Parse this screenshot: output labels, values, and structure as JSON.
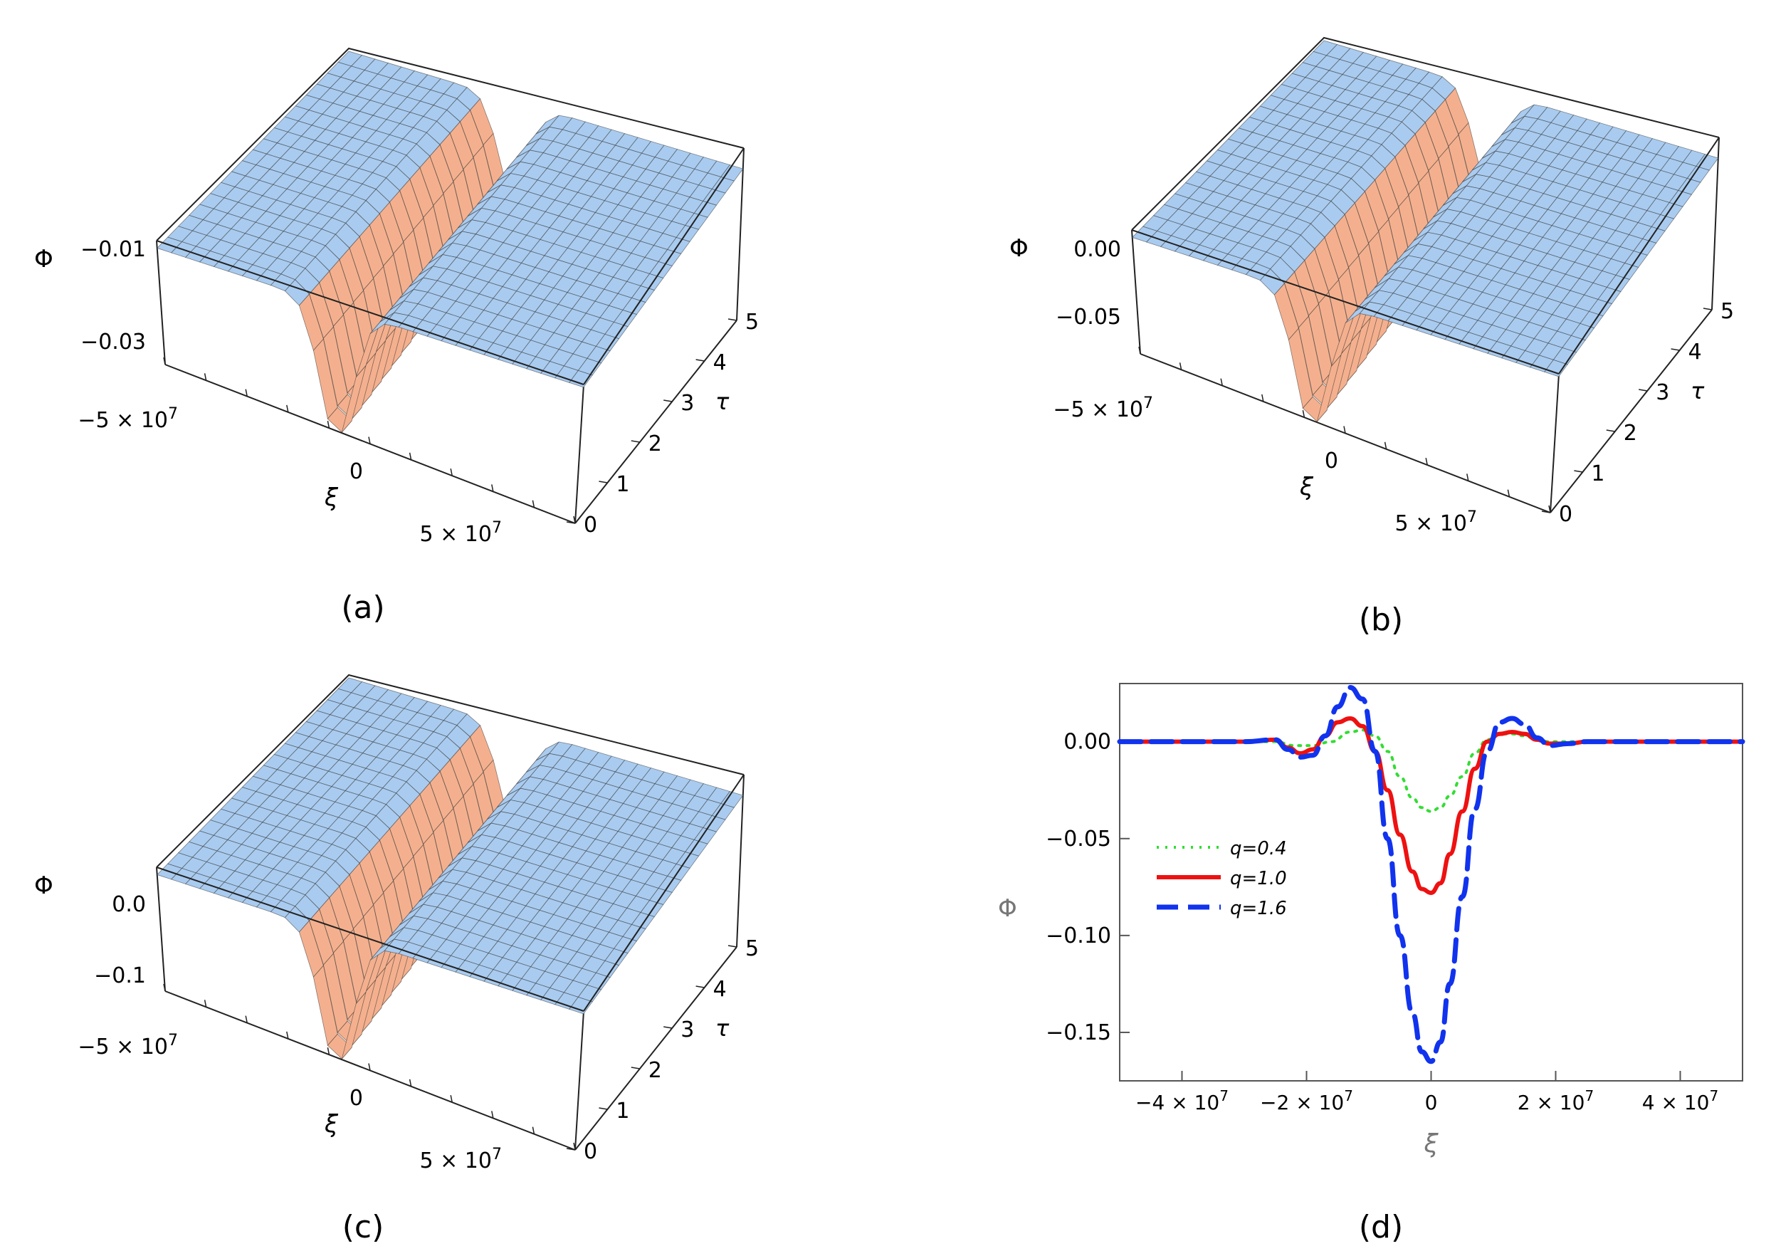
{
  "panel_labels": [
    "(a)",
    "(b)",
    "(c)",
    "(d)"
  ],
  "chart_data": [
    {
      "type": "surface",
      "panel": "(a)",
      "zlabel": "Φ",
      "xlabel": "ξ",
      "ylabel": "τ",
      "x_ticks": [
        "−5 × 10",
        "0",
        "5 × 10"
      ],
      "x_tick_exp": "7",
      "y_ticks": [
        "0",
        "1",
        "2",
        "3",
        "4",
        "5"
      ],
      "z_ticks": [
        "−0.01",
        "−0.03"
      ],
      "z_min": -0.037,
      "colors": {
        "surface": "#a9cbef",
        "trough": "#f4b08e",
        "mesh": "#2b2b2b"
      }
    },
    {
      "type": "surface",
      "panel": "(b)",
      "zlabel": "Φ",
      "xlabel": "ξ",
      "ylabel": "τ",
      "x_ticks": [
        "−5 × 10",
        "0",
        "5 × 10"
      ],
      "x_tick_exp": "7",
      "y_ticks": [
        "0",
        "1",
        "2",
        "3",
        "4",
        "5"
      ],
      "z_ticks": [
        "0.00",
        "−0.05"
      ],
      "z_min": -0.078,
      "colors": {
        "surface": "#a9cbef",
        "trough": "#f4b08e",
        "mesh": "#2b2b2b"
      }
    },
    {
      "type": "surface",
      "panel": "(c)",
      "zlabel": "Φ",
      "xlabel": "ξ",
      "ylabel": "τ",
      "x_ticks": [
        "−5 × 10",
        "0",
        "5 × 10"
      ],
      "x_tick_exp": "7",
      "y_ticks": [
        "0",
        "1",
        "2",
        "3",
        "4",
        "5"
      ],
      "z_ticks": [
        "0.0",
        "−0.1"
      ],
      "z_min": -0.165,
      "colors": {
        "surface": "#a9cbef",
        "trough": "#f4b08e",
        "mesh": "#2b2b2b"
      }
    },
    {
      "type": "line",
      "panel": "(d)",
      "xlabel": "ξ",
      "ylabel": "Φ",
      "xlim": [
        -50000000,
        50000000
      ],
      "ylim": [
        -0.175,
        0.03
      ],
      "x_ticks": [
        {
          "v": -40000000,
          "label": "−4 × 10",
          "exp": "7"
        },
        {
          "v": -20000000,
          "label": "−2 × 10",
          "exp": "7"
        },
        {
          "v": 0,
          "label": "0",
          "exp": ""
        },
        {
          "v": 20000000,
          "label": "2 × 10",
          "exp": "7"
        },
        {
          "v": 40000000,
          "label": "4 × 10",
          "exp": "7"
        }
      ],
      "y_ticks": [
        {
          "v": 0.0,
          "label": "0.00"
        },
        {
          "v": -0.05,
          "label": "−0.05"
        },
        {
          "v": -0.1,
          "label": "−0.10"
        },
        {
          "v": -0.15,
          "label": "−0.15"
        }
      ],
      "series": [
        {
          "name": "q=0.4",
          "color": "#33dd33",
          "style": "dotted",
          "x": [
            -50000000,
            -40000000,
            -30000000,
            -25000000,
            -22000000,
            -19000000,
            -16000000,
            -13000000,
            -11000000,
            -9000000,
            -7000000,
            -5000000,
            -3000000,
            -1500000,
            0,
            1500000,
            3000000,
            5000000,
            7000000,
            9000000,
            11000000,
            13000000,
            15000000,
            17000000,
            19000000,
            22000000,
            25000000,
            30000000,
            40000000,
            50000000
          ],
          "y": [
            0,
            0,
            0,
            0,
            -0.002,
            -0.002,
            0,
            0.005,
            0.006,
            0.003,
            -0.005,
            -0.018,
            -0.029,
            -0.034,
            -0.036,
            -0.034,
            -0.028,
            -0.018,
            -0.006,
            0.001,
            0.004,
            0.004,
            0.003,
            0.001,
            0,
            0,
            0,
            0,
            0,
            0
          ]
        },
        {
          "name": "q=1.0",
          "color": "#ee1111",
          "style": "solid",
          "x": [
            -50000000,
            -40000000,
            -30000000,
            -25000000,
            -23000000,
            -21000000,
            -19000000,
            -17000000,
            -15000000,
            -13000000,
            -11000000,
            -9000000,
            -7000000,
            -5000000,
            -3000000,
            -1500000,
            0,
            1500000,
            3000000,
            5000000,
            7000000,
            9000000,
            11000000,
            13000000,
            15000000,
            17000000,
            19000000,
            22000000,
            25000000,
            30000000,
            40000000,
            50000000
          ],
          "y": [
            0,
            0,
            0,
            0.001,
            -0.003,
            -0.006,
            -0.004,
            0.003,
            0.01,
            0.012,
            0.008,
            -0.005,
            -0.025,
            -0.048,
            -0.067,
            -0.076,
            -0.078,
            -0.073,
            -0.058,
            -0.036,
            -0.014,
            0.0,
            0.004,
            0.005,
            0.004,
            0.001,
            -0.001,
            -0.001,
            0,
            0,
            0,
            0
          ]
        },
        {
          "name": "q=1.6",
          "color": "#1133ee",
          "style": "dashed",
          "x": [
            -50000000,
            -40000000,
            -30000000,
            -25000000,
            -23000000,
            -21000000,
            -19000000,
            -17000000,
            -15000000,
            -13000000,
            -11000000,
            -9000000,
            -7000000,
            -5000000,
            -3000000,
            -1500000,
            0,
            1500000,
            3000000,
            5000000,
            7000000,
            9000000,
            11000000,
            13000000,
            15000000,
            17000000,
            19000000,
            22000000,
            25000000,
            30000000,
            40000000,
            50000000
          ],
          "y": [
            0,
            0,
            0,
            0.001,
            -0.004,
            -0.008,
            -0.007,
            0.003,
            0.018,
            0.028,
            0.022,
            -0.005,
            -0.05,
            -0.1,
            -0.14,
            -0.16,
            -0.165,
            -0.155,
            -0.125,
            -0.08,
            -0.035,
            -0.005,
            0.01,
            0.012,
            0.009,
            0.002,
            -0.002,
            -0.001,
            0,
            0,
            0,
            0
          ]
        }
      ],
      "legend": "middle-left"
    }
  ]
}
